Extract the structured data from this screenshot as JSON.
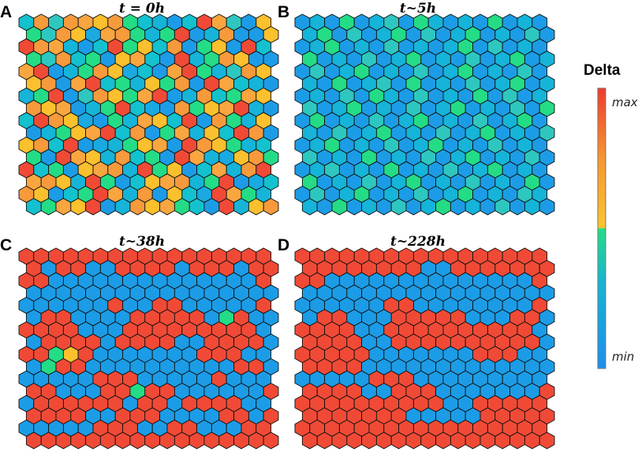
{
  "panels": [
    {
      "letter": "A",
      "title": "t = 0h",
      "rows": [
        "kojohyogkcbkrhjby",
        "gjoydhogcgrbcobay",
        "rohcbkrgykobgybrk",
        "gjokgbyhkbrcgoyba",
        "hrbcgoydkbhrgcjoy",
        "yobhrkgcygobrhkcb",
        "cgrbjoyghrbcokghy",
        "oyhbcgrkdbogyhrcb",
        "kroydbgchykrbogcy",
        "bcgyhrkobghcykrob",
        "yokrbdcgyhbroygck",
        "gbrhycokgbrhcdyog",
        "rkgbyhocrgybkhcor",
        "hoycrgbkyhocgrbdk",
        "oybkgrhcobykdrhgc",
        "kghyrbcoyhgkbrcyo"
      ]
    },
    {
      "letter": "B",
      "title": "t~5h",
      "rows": [
        "bcbgbcjbgcbcbgbcb",
        "cgbjbcgbjbcgbcbjb",
        "bcgbcbjbcbcgbjbcb",
        "gbcbjbcgbcbjbcgbc",
        "bjbcgbcbjbcgbcbjb",
        "cbgbcjbgbcbjbcgbc",
        "bcbjbgcbjbcbgbjbc",
        "jbcgbcbjbcgbcbjbg",
        "bgbcbjbcgbcbjbcgb",
        "cbjbcgbcbjbcgbcbj",
        "bcgbcbjbcgbcbjbcb",
        "jbcbgbcbjbcgbcbjb",
        "bcjbcbgbcbjbcgbcb",
        "gbcbjbcgbcbjbcbgb",
        "bjbcgbcbjbcgbcbjc",
        "cbgbcbjbcgbcbjbcb"
      ]
    },
    {
      "letter": "C",
      "title": "t~38h",
      "rows": [
        "rrrrrrrrrrrrrrrrr",
        "rbrrbbrrrrbrrrbrr",
        "rrbbbbbbbbbbbbbbr",
        "bbbbbbbbbbbbbbbbb",
        "bbbbbbrbbrrbbbbbr",
        "brrbbbbrrrrrbgrbb",
        "rrrrbbbrrrrrrrrrb",
        "brrrrbrrrrbbrrrrb",
        "rrgyrbbbbbbbrrrbb",
        "bgrrbbbbbbbbbbrrb",
        "bbbbbrrrbbbbbrbbb",
        "rrbbbrrgrrbbbbbbr",
        "brrrrrrbrrbrrrrbb",
        "rrrrbbrrrbbbbrrbr",
        "bbbbbrrrbbrrbbbrr",
        "rrrrrrrrrrrrrrrrr"
      ]
    },
    {
      "letter": "D",
      "title": "t~228h",
      "rows": [
        "rrrrrrrrrrrrrrrrr",
        "rrrrrrrrbbrrrrrrr",
        "rrbbbbbbbbbbbbbbr",
        "bbbbbbbbbbbbbbbbb",
        "bbbbbbrrbbbbbbbbr",
        "brrbbbrrrrrbbbrrb",
        "rrrrbbrrrrrrrrrrb",
        "rrrrbbrrrrrrrrrrb",
        "rrrrrbbbbbbbrrrbb",
        "rrrrbbbbbbbbbbbbb",
        "bbbbbrrrbbbbbbbbb",
        "rrrrbbrrrbbbbbbbr",
        "rrrrrrrrrrbbrrrrr",
        "rrrrrrrbbbbbrrrrr",
        "rrrrrrrrrrrrrrrrr",
        "rrrrrrrrrrrrrrrrr"
      ]
    }
  ],
  "palette": {
    "r": "#f04a36",
    "o": "#f69a3c",
    "y": "#fbc02d",
    "g": "#24dc86",
    "j": "#2ec7c0",
    "k": "#13c1cf",
    "c": "#15b4d8",
    "b": "#1c9ce6",
    "h": "#f9a640",
    "d": "#1aa9e0"
  },
  "legend": {
    "title": "Delta",
    "max_label": "max",
    "min_label": "min"
  }
}
